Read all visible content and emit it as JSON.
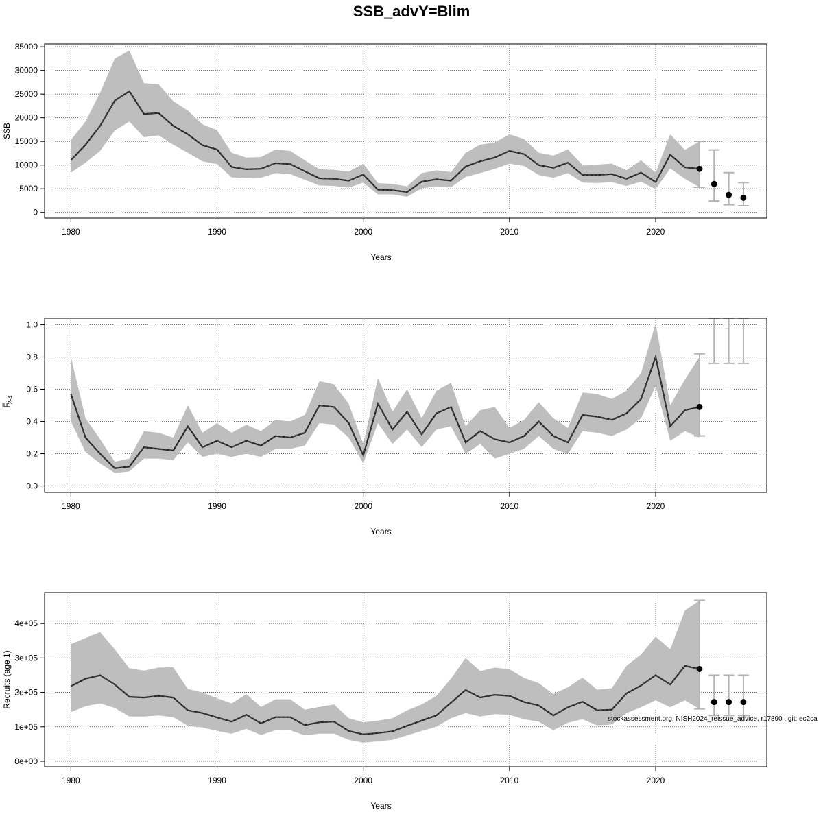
{
  "title": "SSB_advY=Blim",
  "footnote": "stockassessment.org, NISH2024_reissue_advice, r17890 , git: ec2ca",
  "colors": {
    "band": "#bebebe",
    "line": "#222222",
    "grid": "#555555",
    "errorbar": "#b3b3b3",
    "point": "#000000"
  },
  "chart_data": [
    {
      "type": "line",
      "xlabel": "Years",
      "ylabel": "SSB",
      "xlim": [
        1978.2,
        1974.0
      ],
      "ylim": [
        -1200,
        35600
      ],
      "xticks": [
        1980,
        1990,
        2000,
        2010,
        2020
      ],
      "yticks": [
        0,
        5000,
        10000,
        15000,
        20000,
        25000,
        30000,
        35000
      ],
      "ytick_labels": [
        "0",
        "5000",
        "10000",
        "15000",
        "20000",
        "25000",
        "30000",
        "35000"
      ],
      "grid": true,
      "years": [
        1980,
        1981,
        1982,
        1983,
        1984,
        1985,
        1986,
        1987,
        1988,
        1989,
        1990,
        1991,
        1992,
        1993,
        1994,
        1995,
        1996,
        1997,
        1998,
        1999,
        2000,
        2001,
        2002,
        2003,
        2004,
        2005,
        2006,
        2007,
        2008,
        2009,
        2010,
        2011,
        2012,
        2013,
        2014,
        2015,
        2016,
        2017,
        2018,
        2019,
        2020,
        2021,
        2022,
        2023
      ],
      "estimate": [
        11000,
        14300,
        18300,
        23600,
        25600,
        20800,
        21000,
        18300,
        16500,
        14200,
        13300,
        9600,
        9100,
        9200,
        10400,
        10200,
        8700,
        7200,
        7100,
        6700,
        8000,
        4800,
        4700,
        4300,
        6500,
        7000,
        6700,
        9700,
        10800,
        11600,
        13000,
        12300,
        10000,
        9400,
        10500,
        7900,
        7900,
        8100,
        7100,
        8400,
        6400,
        12200,
        9500,
        9200
      ],
      "lower": [
        8400,
        10500,
        13000,
        17300,
        19200,
        15900,
        16300,
        14300,
        12600,
        10800,
        10200,
        7400,
        7200,
        7300,
        8300,
        8100,
        6900,
        5700,
        5600,
        5200,
        6300,
        3800,
        3800,
        3300,
        5100,
        5500,
        5300,
        7500,
        8300,
        9200,
        10300,
        9800,
        7900,
        7300,
        8300,
        6300,
        6200,
        6400,
        5600,
        6500,
        4900,
        9300,
        7100,
        5300
      ],
      "upper": [
        15300,
        19200,
        25300,
        32500,
        34200,
        27300,
        27100,
        23500,
        21500,
        18600,
        17400,
        12600,
        11600,
        11700,
        13300,
        13000,
        11000,
        9100,
        9000,
        8600,
        10300,
        6200,
        6000,
        5500,
        8300,
        8900,
        8500,
        12600,
        14300,
        14800,
        16500,
        15500,
        12600,
        12000,
        13300,
        10000,
        10100,
        10300,
        8900,
        11000,
        8400,
        16500,
        13200,
        15000
      ],
      "forecast": [
        {
          "x": 2024,
          "y": 6000,
          "lo": 2400,
          "hi": 13200
        },
        {
          "x": 2025,
          "y": 3700,
          "lo": 1600,
          "hi": 8400
        },
        {
          "x": 2026,
          "y": 3100,
          "lo": 1400,
          "hi": 6300
        }
      ],
      "last_point": {
        "x": 2023,
        "y": 9200
      }
    },
    {
      "type": "line",
      "xlabel": "Years",
      "ylabel": "F̅",
      "ylabel_sub": "2-4",
      "ylim": [
        -0.04,
        1.04
      ],
      "xticks": [
        1980,
        1990,
        2000,
        2010,
        2020
      ],
      "yticks": [
        0.0,
        0.2,
        0.4,
        0.6,
        0.8,
        1.0
      ],
      "ytick_labels": [
        "0.0",
        "0.2",
        "0.4",
        "0.6",
        "0.8",
        "1.0"
      ],
      "grid": true,
      "years": [
        1980,
        1981,
        1982,
        1983,
        1984,
        1985,
        1986,
        1987,
        1988,
        1989,
        1990,
        1991,
        1992,
        1993,
        1994,
        1995,
        1996,
        1997,
        1998,
        1999,
        2000,
        2001,
        2002,
        2003,
        2004,
        2005,
        2006,
        2007,
        2008,
        2009,
        2010,
        2011,
        2012,
        2013,
        2014,
        2015,
        2016,
        2017,
        2018,
        2019,
        2020,
        2021,
        2022,
        2023
      ],
      "estimate": [
        0.57,
        0.3,
        0.2,
        0.11,
        0.12,
        0.24,
        0.23,
        0.22,
        0.37,
        0.24,
        0.28,
        0.24,
        0.28,
        0.25,
        0.31,
        0.3,
        0.33,
        0.5,
        0.49,
        0.39,
        0.19,
        0.51,
        0.35,
        0.46,
        0.32,
        0.45,
        0.49,
        0.27,
        0.34,
        0.29,
        0.27,
        0.31,
        0.4,
        0.31,
        0.27,
        0.44,
        0.43,
        0.41,
        0.45,
        0.54,
        0.8,
        0.37,
        0.47,
        0.49
      ],
      "lower": [
        0.4,
        0.21,
        0.14,
        0.08,
        0.09,
        0.17,
        0.17,
        0.16,
        0.27,
        0.18,
        0.2,
        0.18,
        0.2,
        0.18,
        0.23,
        0.23,
        0.25,
        0.39,
        0.38,
        0.3,
        0.14,
        0.39,
        0.26,
        0.35,
        0.24,
        0.35,
        0.37,
        0.2,
        0.26,
        0.17,
        0.2,
        0.23,
        0.31,
        0.23,
        0.2,
        0.34,
        0.33,
        0.31,
        0.35,
        0.42,
        0.62,
        0.28,
        0.34,
        0.3
      ],
      "upper": [
        0.8,
        0.42,
        0.29,
        0.15,
        0.17,
        0.34,
        0.33,
        0.3,
        0.5,
        0.33,
        0.39,
        0.33,
        0.38,
        0.34,
        0.41,
        0.4,
        0.44,
        0.65,
        0.63,
        0.51,
        0.26,
        0.67,
        0.46,
        0.6,
        0.42,
        0.59,
        0.64,
        0.37,
        0.47,
        0.49,
        0.36,
        0.41,
        0.52,
        0.42,
        0.36,
        0.58,
        0.57,
        0.54,
        0.59,
        0.7,
        1.01,
        0.5,
        0.66,
        0.8
      ],
      "forecast": [
        {
          "x": 2024,
          "y": null,
          "lo": 0.76,
          "hi": 1.04
        },
        {
          "x": 2025,
          "y": null,
          "lo": 0.76,
          "hi": 1.04
        },
        {
          "x": 2026,
          "y": null,
          "lo": 0.76,
          "hi": 1.04
        }
      ],
      "forecast_2023_bar": {
        "x": 2023,
        "lo": 0.31,
        "hi": 0.82
      },
      "last_point": {
        "x": 2023,
        "y": 0.49
      }
    },
    {
      "type": "line",
      "xlabel": "Years",
      "ylabel": "Recruits (age 1)",
      "ylim": [
        -16000,
        490000
      ],
      "xticks": [
        1980,
        1990,
        2000,
        2010,
        2020
      ],
      "yticks": [
        0,
        100000,
        200000,
        300000,
        400000
      ],
      "ytick_labels": [
        "0e+00",
        "1e+05",
        "2e+05",
        "3e+05",
        "4e+05"
      ],
      "grid": true,
      "years": [
        1980,
        1981,
        1982,
        1983,
        1984,
        1985,
        1986,
        1987,
        1988,
        1989,
        1990,
        1991,
        1992,
        1993,
        1994,
        1995,
        1996,
        1997,
        1998,
        1999,
        2000,
        2001,
        2002,
        2003,
        2004,
        2005,
        2006,
        2007,
        2008,
        2009,
        2010,
        2011,
        2012,
        2013,
        2014,
        2015,
        2016,
        2017,
        2018,
        2019,
        2020,
        2021,
        2022,
        2023
      ],
      "estimate": [
        218000,
        240000,
        250000,
        223000,
        187000,
        185000,
        190000,
        185000,
        148000,
        140000,
        127000,
        115000,
        135000,
        110000,
        128000,
        128000,
        105000,
        113000,
        115000,
        88000,
        78000,
        82000,
        87000,
        103000,
        118000,
        133000,
        170000,
        207000,
        185000,
        193000,
        190000,
        172000,
        162000,
        133000,
        157000,
        173000,
        148000,
        150000,
        197000,
        220000,
        250000,
        223000,
        277000,
        268000
      ],
      "lower": [
        143000,
        160000,
        168000,
        155000,
        130000,
        130000,
        133000,
        128000,
        103000,
        98000,
        88000,
        80000,
        94000,
        76000,
        90000,
        90000,
        75000,
        80000,
        80000,
        62000,
        54000,
        58000,
        62000,
        75000,
        88000,
        100000,
        125000,
        140000,
        130000,
        137000,
        135000,
        122000,
        115000,
        90000,
        112000,
        122000,
        104000,
        107000,
        140000,
        157000,
        177000,
        157000,
        177000,
        152000
      ],
      "upper": [
        340000,
        358000,
        375000,
        325000,
        270000,
        263000,
        272000,
        273000,
        210000,
        200000,
        183000,
        168000,
        195000,
        158000,
        180000,
        180000,
        150000,
        158000,
        165000,
        125000,
        113000,
        118000,
        125000,
        148000,
        165000,
        190000,
        240000,
        300000,
        262000,
        272000,
        267000,
        242000,
        227000,
        195000,
        215000,
        243000,
        208000,
        212000,
        277000,
        310000,
        362000,
        325000,
        438000,
        467000
      ],
      "forecast": [
        {
          "x": 2024,
          "y": 172000,
          "lo": 133000,
          "hi": 250000
        },
        {
          "x": 2025,
          "y": 172000,
          "lo": 133000,
          "hi": 250000
        },
        {
          "x": 2026,
          "y": 172000,
          "lo": 133000,
          "hi": 250000
        }
      ],
      "last_point": {
        "x": 2023,
        "y": 268000
      }
    }
  ]
}
